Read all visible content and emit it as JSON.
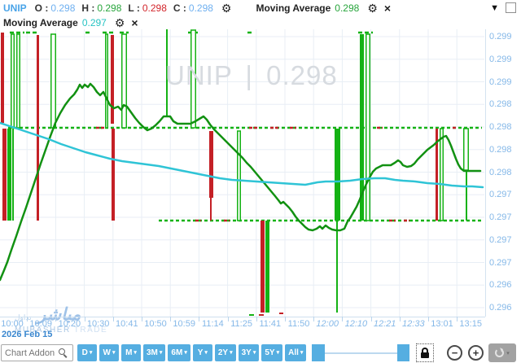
{
  "header": {
    "symbol": "UNIP",
    "ohlc": [
      {
        "label": "O :",
        "value": "0.298"
      },
      {
        "label": "H :",
        "value": "0.298"
      },
      {
        "label": "L :",
        "value": "0.298"
      },
      {
        "label": "C :",
        "value": "0.298"
      }
    ],
    "indicator1": {
      "name": "Moving Average",
      "value": "0.298"
    },
    "indicator2": {
      "name": "Moving Average",
      "value": "0.297"
    }
  },
  "icons": {
    "gear": "⚙",
    "close": "×",
    "caret_down": "▾",
    "collapse": "▼"
  },
  "watermark": "UNIP | 0.298",
  "logo": {
    "arabic": "مباشر",
    "arabic_small": "تداول",
    "latin": "MUBASHER",
    "latin2": "TRADE"
  },
  "toolbar": {
    "search_placeholder": "Chart Addon",
    "range_buttons": [
      "D",
      "W",
      "M",
      "3M",
      "6M",
      "Y",
      "2Y",
      "3Y",
      "5Y",
      "All"
    ],
    "zoom_out": "−",
    "zoom_in": "+"
  },
  "chart_data": {
    "type": "candlestick",
    "symbol": "UNIP",
    "date": "2026 Feb 15",
    "price_axis": {
      "labels": [
        "0.299",
        "0.299",
        "0.299",
        "0.298",
        "0.298",
        "0.298",
        "0.298",
        "0.297",
        "0.297",
        "0.297",
        "0.297",
        "0.296",
        "0.296"
      ],
      "first_y": 45,
      "step_y": 27.75
    },
    "time_axis": {
      "labels": [
        {
          "label": "10:00",
          "italic": false
        },
        {
          "label": "10:09",
          "italic": false
        },
        {
          "label": "10:20",
          "italic": false
        },
        {
          "label": "10:30",
          "italic": false
        },
        {
          "label": "10:41",
          "italic": false
        },
        {
          "label": "10:50",
          "italic": false
        },
        {
          "label": "10:59",
          "italic": false
        },
        {
          "label": "11:14",
          "italic": false
        },
        {
          "label": "11:25",
          "italic": false
        },
        {
          "label": "11:41",
          "italic": false
        },
        {
          "label": "11:50",
          "italic": false
        },
        {
          "label": "12:00",
          "italic": true
        },
        {
          "label": "12:10",
          "italic": true
        },
        {
          "label": "12:21",
          "italic": true
        },
        {
          "label": "12:33",
          "italic": true
        },
        {
          "label": "13:01",
          "italic": false
        },
        {
          "label": "13:15",
          "italic": false
        }
      ],
      "first_x": 15,
      "step_x": 35.2
    },
    "colors": {
      "up": "#14b214",
      "down": "#c42026",
      "ma1": "#129112",
      "ma2": "#2fc4d6",
      "grid": "#e8eef5"
    },
    "top_dashes_y": 40,
    "top_dashes": [
      [
        12,
        30
      ],
      [
        32,
        45
      ],
      [
        105,
        110
      ],
      [
        126,
        142
      ],
      [
        147,
        158
      ],
      [
        231,
        243
      ],
      [
        304,
        310
      ],
      [
        440,
        458
      ]
    ],
    "dash_rows": [
      {
        "y": 157,
        "x1": 10,
        "x2": 592,
        "red_segments": [
          [
            118,
            128
          ],
          [
            306,
            318
          ],
          [
            332,
            342
          ],
          [
            356,
            364
          ],
          [
            463,
            470
          ],
          [
            556,
            562
          ]
        ]
      },
      {
        "y": 271,
        "x1": 195,
        "x2": 592,
        "red_segments": [
          [
            240,
            247
          ],
          [
            275,
            282
          ],
          [
            478,
            486
          ],
          [
            496,
            503
          ]
        ]
      }
    ],
    "candles": [
      {
        "x": 1,
        "w": 4,
        "y1": 40,
        "y2": 151,
        "kind": "down"
      },
      {
        "x": 13,
        "w": 5,
        "y1": 42,
        "y2": 157,
        "kind": "hollow"
      },
      {
        "x": 20,
        "w": 5,
        "y1": 42,
        "y2": 157,
        "kind": "hollow"
      },
      {
        "x": 45,
        "w": 3,
        "y1": 43,
        "y2": 271,
        "kind": "down"
      },
      {
        "x": 62,
        "w": 7,
        "y1": 42,
        "y2": 157,
        "kind": "hollow"
      },
      {
        "x": 129,
        "w": 4,
        "y1": 42,
        "y2": 157,
        "kind": "hollow"
      },
      {
        "x": 136,
        "w": 4,
        "y1": 43,
        "y2": 152,
        "kind": "down"
      },
      {
        "x": 149,
        "w": 7,
        "y1": 42,
        "y2": 157,
        "kind": "hollow"
      },
      {
        "x": 204,
        "w": 2,
        "y1": 36,
        "y2": 143,
        "kind": "up"
      },
      {
        "x": 234,
        "w": 7,
        "y1": 37,
        "y2": 157,
        "kind": "hollow"
      },
      {
        "x": 442,
        "w": 5,
        "y1": 42,
        "y2": 271,
        "kind": "up"
      },
      {
        "x": 449,
        "w": 6,
        "y1": 42,
        "y2": 271,
        "kind": "hollow"
      },
      {
        "x": 3,
        "w": 5,
        "y1": 158,
        "y2": 271,
        "kind": "down"
      },
      {
        "x": 9,
        "w": 5,
        "y1": 158,
        "y2": 271,
        "kind": "up"
      },
      {
        "x": 15,
        "w": 2,
        "y1": 158,
        "y2": 271,
        "kind": "up"
      },
      {
        "x": 137,
        "w": 4,
        "y1": 158,
        "y2": 271,
        "kind": "down"
      },
      {
        "x": 257,
        "w": 5,
        "y1": 161,
        "y2": 243,
        "kind": "down"
      },
      {
        "x": 258,
        "w": 2,
        "y1": 243,
        "y2": 271,
        "kind": "down"
      },
      {
        "x": 291,
        "w": 5,
        "y1": 161,
        "y2": 271,
        "kind": "hollow"
      },
      {
        "x": 411,
        "w": 7,
        "y1": 158,
        "y2": 271,
        "kind": "up"
      },
      {
        "x": 413,
        "w": 2,
        "y1": 271,
        "y2": 384,
        "kind": "up"
      },
      {
        "x": 535,
        "w": 3,
        "y1": 158,
        "y2": 271,
        "kind": "down"
      },
      {
        "x": 540,
        "w": 5,
        "y1": 158,
        "y2": 271,
        "kind": "hollow"
      },
      {
        "x": 569,
        "w": 7,
        "y1": 158,
        "y2": 209,
        "kind": "hollow"
      },
      {
        "x": 572,
        "w": 2,
        "y1": 209,
        "y2": 271,
        "kind": "up"
      },
      {
        "x": 320,
        "w": 5,
        "y1": 271,
        "y2": 384,
        "kind": "down"
      },
      {
        "x": 326,
        "w": 5,
        "y1": 271,
        "y2": 384,
        "kind": "up"
      },
      {
        "x": 306,
        "w": 6,
        "y1": 386,
        "y2": 388,
        "kind": "up"
      },
      {
        "x": 318,
        "w": 6,
        "y1": 386,
        "y2": 388,
        "kind": "down"
      },
      {
        "x": 343,
        "w": 5,
        "y1": 384,
        "y2": 386,
        "kind": "down"
      }
    ],
    "series": [
      {
        "name": "Moving Average 1",
        "color": "#129112",
        "points": [
          [
            0,
            344
          ],
          [
            5,
            332
          ],
          [
            9,
            322
          ],
          [
            14,
            307
          ],
          [
            20,
            290
          ],
          [
            26,
            272
          ],
          [
            32,
            255
          ],
          [
            38,
            237
          ],
          [
            44,
            219
          ],
          [
            50,
            201
          ],
          [
            56,
            184
          ],
          [
            62,
            167
          ],
          [
            68,
            151
          ],
          [
            74,
            139
          ],
          [
            80,
            129
          ],
          [
            86,
            121
          ],
          [
            91,
            116
          ],
          [
            95,
            110
          ],
          [
            98,
            104
          ],
          [
            101,
            108
          ],
          [
            104,
            104
          ],
          [
            108,
            107
          ],
          [
            111,
            103
          ],
          [
            115,
            107
          ],
          [
            119,
            113
          ],
          [
            123,
            117
          ],
          [
            127,
            113
          ],
          [
            131,
            121
          ],
          [
            135,
            129
          ],
          [
            140,
            133
          ],
          [
            145,
            131
          ],
          [
            149,
            135
          ],
          [
            152,
            129
          ],
          [
            156,
            131
          ],
          [
            161,
            138
          ],
          [
            166,
            145
          ],
          [
            171,
            151
          ],
          [
            176,
            156
          ],
          [
            181,
            160
          ],
          [
            186,
            158
          ],
          [
            191,
            154
          ],
          [
            196,
            149
          ],
          [
            201,
            143
          ],
          [
            209,
            143
          ],
          [
            213,
            149
          ],
          [
            218,
            152
          ],
          [
            226,
            152
          ],
          [
            234,
            152
          ],
          [
            240,
            149
          ],
          [
            245,
            146
          ],
          [
            250,
            143
          ],
          [
            254,
            147
          ],
          [
            258,
            153
          ],
          [
            263,
            159
          ],
          [
            268,
            164
          ],
          [
            273,
            169
          ],
          [
            278,
            174
          ],
          [
            283,
            179
          ],
          [
            288,
            184
          ],
          [
            293,
            189
          ],
          [
            298,
            194
          ],
          [
            303,
            200
          ],
          [
            308,
            205
          ],
          [
            313,
            211
          ],
          [
            318,
            217
          ],
          [
            323,
            223
          ],
          [
            328,
            229
          ],
          [
            333,
            235
          ],
          [
            338,
            241
          ],
          [
            342,
            246
          ],
          [
            345,
            250
          ],
          [
            348,
            248
          ],
          [
            351,
            251
          ],
          [
            355,
            255
          ],
          [
            359,
            260
          ],
          [
            363,
            266
          ],
          [
            367,
            271
          ],
          [
            371,
            275
          ],
          [
            375,
            279
          ],
          [
            379,
            282
          ],
          [
            384,
            283
          ],
          [
            389,
            281
          ],
          [
            393,
            278
          ],
          [
            396,
            281
          ],
          [
            400,
            277
          ],
          [
            404,
            280
          ],
          [
            408,
            282
          ],
          [
            413,
            283
          ],
          [
            418,
            283
          ],
          [
            423,
            281
          ],
          [
            427,
            272
          ],
          [
            430,
            268
          ],
          [
            434,
            261
          ],
          [
            438,
            254
          ],
          [
            442,
            245
          ],
          [
            446,
            235
          ],
          [
            450,
            226
          ],
          [
            454,
            218
          ],
          [
            458,
            211
          ],
          [
            462,
            207
          ],
          [
            466,
            205
          ],
          [
            470,
            203
          ],
          [
            475,
            203
          ],
          [
            480,
            203
          ],
          [
            485,
            200
          ],
          [
            489,
            197
          ],
          [
            492,
            199
          ],
          [
            495,
            203
          ],
          [
            500,
            205
          ],
          [
            505,
            204
          ],
          [
            509,
            201
          ],
          [
            513,
            196
          ],
          [
            517,
            192
          ],
          [
            521,
            188
          ],
          [
            525,
            184
          ],
          [
            529,
            181
          ],
          [
            533,
            178
          ],
          [
            537,
            174
          ],
          [
            541,
            171
          ],
          [
            545,
            168
          ],
          [
            548,
            167
          ],
          [
            551,
            172
          ],
          [
            554,
            179
          ],
          [
            557,
            187
          ],
          [
            560,
            195
          ],
          [
            563,
            202
          ],
          [
            566,
            207
          ],
          [
            570,
            210
          ],
          [
            576,
            210
          ],
          [
            583,
            210
          ],
          [
            590,
            210
          ]
        ]
      },
      {
        "name": "Moving Average 2",
        "color": "#2fc4d6",
        "points": [
          [
            0,
            151
          ],
          [
            15,
            156
          ],
          [
            30,
            161
          ],
          [
            45,
            166
          ],
          [
            60,
            171
          ],
          [
            75,
            177
          ],
          [
            90,
            182
          ],
          [
            105,
            187
          ],
          [
            120,
            191
          ],
          [
            135,
            195
          ],
          [
            150,
            198
          ],
          [
            165,
            200
          ],
          [
            180,
            202
          ],
          [
            195,
            204
          ],
          [
            210,
            207
          ],
          [
            225,
            210
          ],
          [
            240,
            213
          ],
          [
            255,
            216
          ],
          [
            270,
            219
          ],
          [
            285,
            221
          ],
          [
            300,
            222
          ],
          [
            315,
            223
          ],
          [
            330,
            224
          ],
          [
            345,
            225
          ],
          [
            360,
            226
          ],
          [
            375,
            227
          ],
          [
            390,
            224
          ],
          [
            400,
            223
          ],
          [
            415,
            223
          ],
          [
            430,
            222
          ],
          [
            445,
            220
          ],
          [
            460,
            219
          ],
          [
            473,
            219
          ],
          [
            485,
            221
          ],
          [
            495,
            222
          ],
          [
            510,
            223
          ],
          [
            525,
            225
          ],
          [
            540,
            226
          ],
          [
            555,
            228
          ],
          [
            570,
            229
          ],
          [
            580,
            229
          ],
          [
            593,
            230
          ]
        ]
      }
    ]
  }
}
